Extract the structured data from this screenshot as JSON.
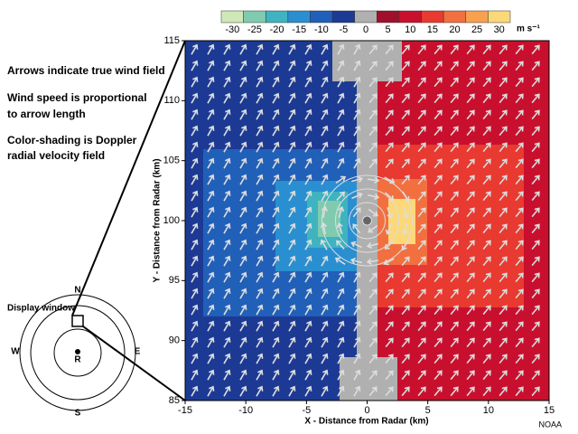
{
  "chart_data": {
    "type": "field",
    "xlabel": "X - Distance from Radar (km)",
    "ylabel": "Y - Distance from Radar (km)",
    "xlim": [
      -15,
      15
    ],
    "ylim": [
      85,
      115
    ],
    "xticks": [
      -15,
      -10,
      -5,
      0,
      5,
      10,
      15
    ],
    "yticks": [
      85,
      90,
      95,
      100,
      105,
      110,
      115
    ],
    "colorbar": {
      "ticks": [
        -30,
        -25,
        -20,
        -15,
        -10,
        -5,
        0,
        5,
        10,
        15,
        20,
        25,
        30
      ],
      "colors": [
        "#cfe8b8",
        "#80cbb0",
        "#3fb3c0",
        "#2a8fd0",
        "#2160b8",
        "#1c3a94",
        "#b0b0b0",
        "#a0102a",
        "#c8102e",
        "#e83a30",
        "#f27040",
        "#f7a050",
        "#fbd878"
      ],
      "unit": "m s⁻¹"
    },
    "annotations": [
      "Arrows indicate true wind field",
      "Wind speed is proportional",
      "to arrow length",
      "Color-shading is Doppler",
      "radial velocity field"
    ],
    "inset": {
      "label": "Display window",
      "north": "N",
      "east": "E",
      "south": "S",
      "west": "W",
      "radar": "R"
    },
    "credit": "NOAA"
  }
}
